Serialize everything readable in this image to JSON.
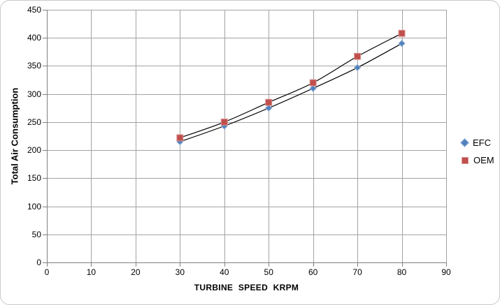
{
  "chart_data": {
    "type": "line",
    "subtype": "scatter-smooth-lines-with-markers",
    "title": "",
    "xlabel": "TURBINE SPEED KRPM",
    "ylabel": "Total Air Consumption",
    "x": [
      30,
      40,
      50,
      60,
      70,
      80
    ],
    "series": [
      {
        "name": "EFC",
        "values": [
          215,
          243,
          275,
          310,
          347,
          390
        ],
        "marker": "diamond",
        "marker_color": "#4F81BD",
        "marker_edge_color": "#95B3D7",
        "line_color": "#000000"
      },
      {
        "name": "OEM",
        "values": [
          222,
          250,
          285,
          320,
          367,
          408
        ],
        "marker": "square",
        "marker_color": "#C0504D",
        "marker_edge_color": "#D99694",
        "line_color": "#000000"
      }
    ],
    "xlim": [
      0,
      90
    ],
    "ylim": [
      0,
      450
    ],
    "xticks": [
      0,
      10,
      20,
      30,
      40,
      50,
      60,
      70,
      80,
      90
    ],
    "yticks": [
      0,
      50,
      100,
      150,
      200,
      250,
      300,
      350,
      400,
      450
    ],
    "grid": true,
    "gridline_color": "#A3A3A3",
    "axis_color": "#808080",
    "text_color": "#000000",
    "background_color": "#FFFFFF",
    "frame_border_color": "#C9C9C9",
    "legend_position": "right"
  }
}
